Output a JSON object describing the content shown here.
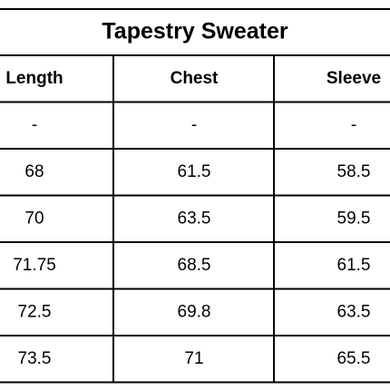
{
  "title": "Tapestry Sweater",
  "table": {
    "header": [
      "Length",
      "Chest",
      "Sleeve"
    ],
    "rows": [
      [
        "-",
        "-",
        "-"
      ],
      [
        "68",
        "61.5",
        "58.5"
      ],
      [
        "70",
        "63.5",
        "59.5"
      ],
      [
        "71.75",
        "68.5",
        "61.5"
      ],
      [
        "72.5",
        "69.8",
        "63.5"
      ],
      [
        "73.5",
        "71",
        "65.5"
      ]
    ]
  }
}
